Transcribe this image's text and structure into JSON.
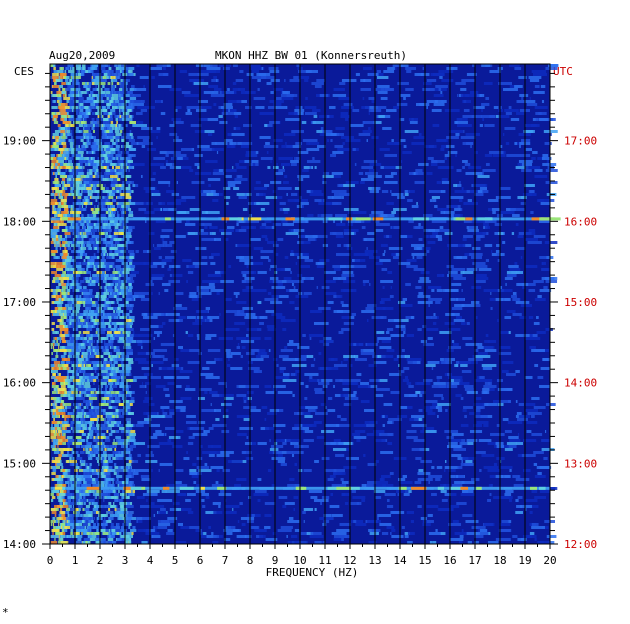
{
  "chart_data": {
    "type": "heatmap",
    "header_left": "Aug20,2009",
    "header_center": "MKON HHZ BW 01 (Konnersreuth)",
    "left_zone": "CES",
    "right_zone": "UTC",
    "xlabel": "FREQUENCY (HZ)",
    "xlim": [
      0,
      20
    ],
    "x_ticks": [
      0,
      1,
      2,
      3,
      4,
      5,
      6,
      7,
      8,
      9,
      10,
      11,
      12,
      13,
      14,
      15,
      16,
      17,
      18,
      19,
      20
    ],
    "left_time_ticks": [
      {
        "label": "19:00",
        "hour": 19
      },
      {
        "label": "18:00",
        "hour": 18
      },
      {
        "label": "17:00",
        "hour": 17
      },
      {
        "label": "16:00",
        "hour": 16
      },
      {
        "label": "15:00",
        "hour": 15
      },
      {
        "label": "14:00",
        "hour": 14
      }
    ],
    "right_time_ticks": [
      {
        "label": "17:00",
        "hour": 19
      },
      {
        "label": "16:00",
        "hour": 18
      },
      {
        "label": "15:00",
        "hour": 17
      },
      {
        "label": "14:00",
        "hour": 16
      },
      {
        "label": "13:00",
        "hour": 15
      },
      {
        "label": "12:00",
        "hour": 14
      }
    ],
    "time_range_ces_hours": [
      14.0,
      19.95
    ],
    "colors": {
      "background": "#0a1a9a",
      "gridline": "#000000",
      "right_axis": "#cc0000"
    },
    "strong_events_ces_hours": [
      18.03,
      14.69
    ],
    "dominant_energy_band_hz": [
      0,
      3.2
    ]
  },
  "footnote": "*"
}
